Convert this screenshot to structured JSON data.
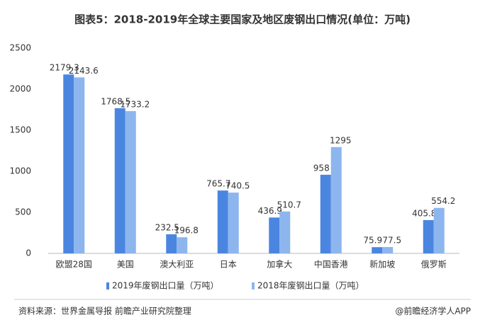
{
  "chart_data": {
    "type": "bar",
    "title": "图表5：2018-2019年全球主要国家及地区废钢出口情况(单位：万吨)",
    "categories": [
      "欧盟28国",
      "美国",
      "澳大利亚",
      "日本",
      "加拿大",
      "中国香港",
      "新加坡",
      "俄罗斯"
    ],
    "series": [
      {
        "name": "2019年废钢出口量（万吨）",
        "color": "#4a86e0",
        "values": [
          2179.3,
          1768.5,
          232.5,
          765.7,
          436.9,
          958,
          75.9,
          405.8
        ]
      },
      {
        "name": "2018年废钢出口量（万吨）",
        "color": "#8db6ef",
        "values": [
          2143.6,
          1733.2,
          196.8,
          740.5,
          510.7,
          1295,
          77.5,
          554.2
        ]
      }
    ],
    "ylim": [
      0,
      2500
    ],
    "yticks": [
      0,
      500,
      1000,
      1500,
      2000,
      2500
    ],
    "grid": false,
    "legend": "bottom",
    "source": "资料来源：世界金属导报 前瞻产业研究院整理",
    "credit": "@前瞻经济学人APP"
  }
}
